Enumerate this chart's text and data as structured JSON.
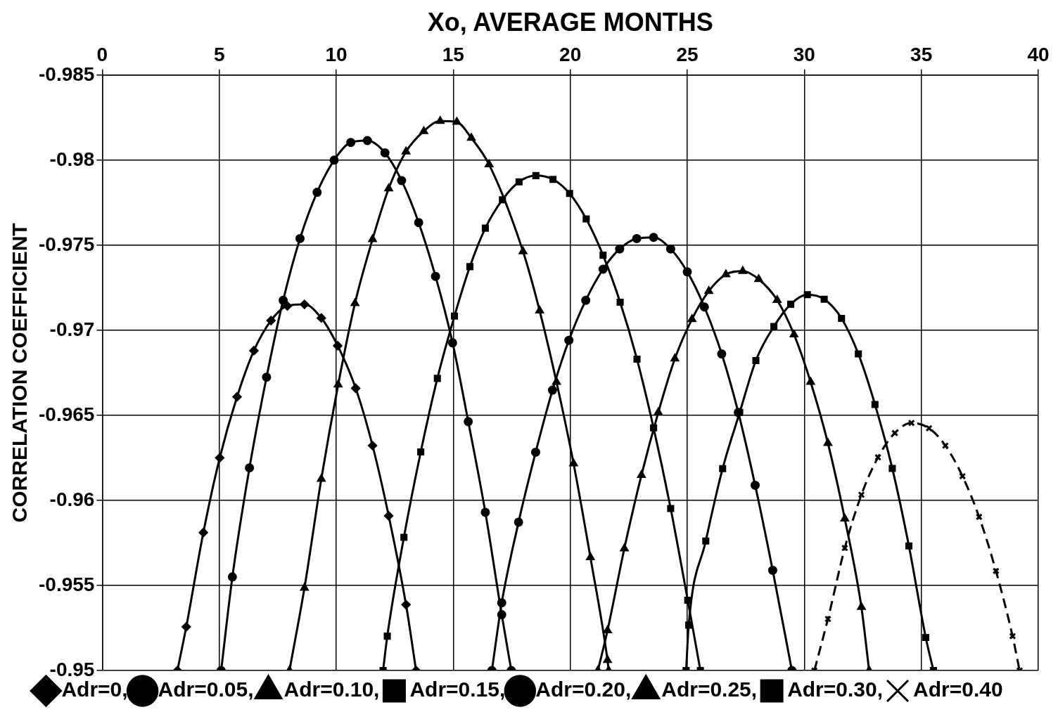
{
  "chart_data": {
    "type": "line",
    "xlabel": "Xo, AVERAGE MONTHS",
    "ylabel": "CORRELATION COEFFICIENT",
    "xlim": [
      0,
      40
    ],
    "xticks": [
      0,
      5,
      10,
      15,
      20,
      25,
      30,
      35,
      40
    ],
    "ylim": [
      -0.95,
      -0.985
    ],
    "yticks": [
      -0.95,
      -0.955,
      -0.96,
      -0.965,
      -0.97,
      -0.975,
      -0.98,
      -0.985
    ],
    "grid": true,
    "legend": "bottom",
    "line_style": "solid",
    "series": [
      {
        "name": "Adr=0,",
        "color": "#000000",
        "marker": "diamond",
        "x": [
          3.21,
          3.59,
          4.32,
          5.02,
          5.76,
          6.48,
          7.21,
          7.91,
          8.64,
          9.36,
          10.06,
          10.83,
          11.55,
          12.24,
          12.98,
          13.41
        ],
        "values": [
          -0.95,
          -0.95257,
          -0.95811,
          -0.9625,
          -0.96609,
          -0.9688,
          -0.97057,
          -0.97143,
          -0.97152,
          -0.97072,
          -0.96909,
          -0.96659,
          -0.96322,
          -0.95909,
          -0.95387,
          -0.95
        ]
      },
      {
        "name": "Adr=0.05,",
        "color": "#000000",
        "marker": "circle",
        "x": [
          5.08,
          5.56,
          6.29,
          7.02,
          7.73,
          8.45,
          9.18,
          9.91,
          10.62,
          11.33,
          12.08,
          12.79,
          13.52,
          14.24,
          14.97,
          15.64,
          16.37,
          17.07,
          17.48
        ],
        "values": [
          -0.95,
          -0.9555,
          -0.96191,
          -0.96724,
          -0.97176,
          -0.97539,
          -0.97811,
          -0.98,
          -0.98104,
          -0.98115,
          -0.98043,
          -0.9788,
          -0.97633,
          -0.97317,
          -0.96926,
          -0.96463,
          -0.9593,
          -0.95328,
          -0.95
        ]
      },
      {
        "name": "Adr=0.10,",
        "color": "#000000",
        "marker": "triangle",
        "x": [
          8.0,
          8.64,
          9.36,
          10.08,
          10.8,
          11.55,
          12.24,
          12.98,
          13.74,
          14.44,
          15.15,
          15.77,
          16.53,
          17.98,
          18.69,
          19.41,
          20.14,
          20.86,
          21.59,
          21.64
        ],
        "values": [
          -0.95,
          -0.95485,
          -0.96126,
          -0.9668,
          -0.97159,
          -0.97535,
          -0.97833,
          -0.9805,
          -0.9817,
          -0.9823,
          -0.98224,
          -0.9813,
          -0.97974,
          -0.97463,
          -0.97115,
          -0.96696,
          -0.96217,
          -0.95665,
          -0.95061,
          -0.95
        ]
      },
      {
        "name": "Adr=0.15,",
        "color": "#000000",
        "marker": "square",
        "x": [
          12.0,
          12.18,
          12.89,
          13.61,
          14.32,
          15.05,
          15.71,
          16.37,
          17.1,
          17.81,
          18.53,
          19.26,
          19.97,
          20.68,
          21.4,
          22.13,
          22.85,
          23.56,
          24.29,
          25.02,
          25.56
        ],
        "values": [
          -0.95,
          -0.95202,
          -0.95783,
          -0.96285,
          -0.96717,
          -0.97083,
          -0.97374,
          -0.976,
          -0.97767,
          -0.97872,
          -0.97909,
          -0.97887,
          -0.97804,
          -0.97654,
          -0.97441,
          -0.97165,
          -0.9683,
          -0.96426,
          -0.95952,
          -0.95413,
          -0.95
        ]
      },
      {
        "name": "Adr=0.20,",
        "color": "#000000",
        "marker": "circle",
        "x": [
          16.65,
          17.07,
          17.79,
          18.52,
          19.24,
          19.94,
          20.66,
          21.4,
          22.11,
          22.84,
          23.56,
          24.29,
          25.0,
          25.73,
          26.47,
          27.18,
          27.9,
          28.65,
          29.47
        ],
        "values": [
          -0.95,
          -0.95398,
          -0.95872,
          -0.96283,
          -0.96648,
          -0.96941,
          -0.97176,
          -0.97359,
          -0.97478,
          -0.97539,
          -0.97546,
          -0.97478,
          -0.97343,
          -0.97137,
          -0.96861,
          -0.96517,
          -0.96089,
          -0.95589,
          -0.95
        ]
      },
      {
        "name": "Adr=0.25,",
        "color": "#000000",
        "marker": "triangle",
        "x": [
          21.18,
          21.59,
          22.31,
          23.04,
          23.76,
          24.47,
          25.2,
          25.92,
          26.65,
          27.37,
          28.05,
          28.84,
          29.56,
          30.27,
          31.01,
          31.73,
          32.44,
          32.77
        ],
        "values": [
          -0.95,
          -0.95235,
          -0.95717,
          -0.96148,
          -0.96517,
          -0.96833,
          -0.97065,
          -0.9723,
          -0.97328,
          -0.97348,
          -0.973,
          -0.97177,
          -0.96975,
          -0.96696,
          -0.96336,
          -0.95892,
          -0.95373,
          -0.95
        ]
      },
      {
        "name": "Adr=0.30,",
        "color": "#000000",
        "marker": "square",
        "x": [
          24.95,
          25.06,
          25.79,
          26.51,
          27.24,
          27.93,
          28.7,
          29.42,
          30.13,
          30.85,
          31.59,
          32.31,
          33.02,
          33.76,
          34.47,
          35.19,
          35.52
        ],
        "values": [
          -0.95,
          -0.95267,
          -0.95761,
          -0.96187,
          -0.96517,
          -0.96822,
          -0.97022,
          -0.97153,
          -0.97209,
          -0.97182,
          -0.9707,
          -0.96861,
          -0.96564,
          -0.96188,
          -0.95732,
          -0.95194,
          -0.95
        ]
      },
      {
        "name": "Adr=0.40",
        "color": "#000000",
        "marker": "cross",
        "line_style": "dashed",
        "x": [
          30.43,
          31.01,
          31.73,
          32.44,
          33.15,
          33.87,
          34.58,
          35.33,
          36.03,
          36.76,
          37.47,
          38.19,
          38.9,
          39.2
        ],
        "values": [
          -0.95,
          -0.95303,
          -0.9572,
          -0.96033,
          -0.96253,
          -0.96396,
          -0.96455,
          -0.96424,
          -0.96322,
          -0.96142,
          -0.95903,
          -0.95585,
          -0.95202,
          -0.95
        ]
      }
    ]
  }
}
